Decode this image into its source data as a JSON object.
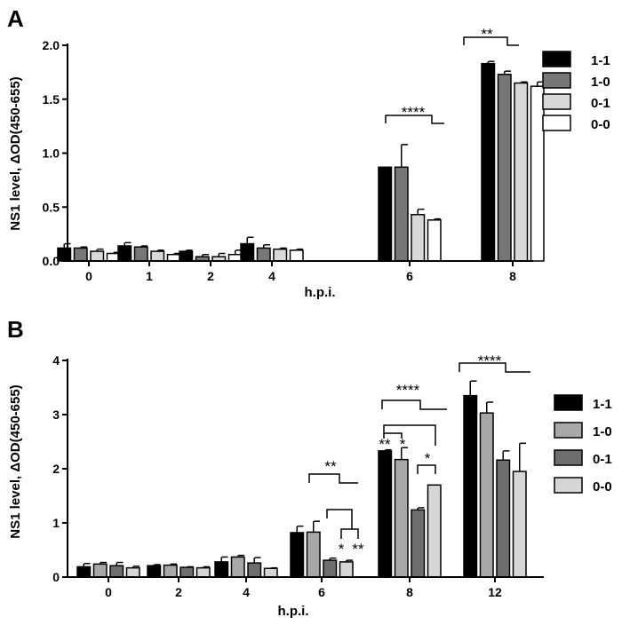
{
  "chart_data": [
    {
      "type": "bar",
      "panel_label": "A",
      "title": "",
      "xlabel": "h.p.i.",
      "ylabel": "NS1 level, ΔOD(450-655)",
      "ylim": [
        0,
        2.0
      ],
      "yticks": [
        0,
        0.5,
        1.0,
        1.5,
        2.0
      ],
      "ytick_labels": [
        "0.0",
        "0.5",
        "1.0",
        "1.5",
        "2.0"
      ],
      "categories": [
        "0",
        "1",
        "2",
        "4",
        "6",
        "8"
      ],
      "legend_position": "right",
      "series": [
        {
          "name": "1-1",
          "color": "#000000",
          "values": [
            0.12,
            0.14,
            0.09,
            0.16,
            0.87,
            1.83
          ],
          "errors": [
            0.04,
            0.03,
            0.01,
            0.06,
            0.0,
            0.02
          ]
        },
        {
          "name": "1-0",
          "color": "#777777",
          "values": [
            0.12,
            0.13,
            0.04,
            0.12,
            0.87,
            1.73
          ],
          "errors": [
            0.01,
            0.01,
            0.02,
            0.03,
            0.21,
            0.03
          ]
        },
        {
          "name": "0-1",
          "color": "#d8d8d8",
          "values": [
            0.09,
            0.09,
            0.04,
            0.11,
            0.43,
            1.65
          ],
          "errors": [
            0.02,
            0.01,
            0.03,
            0.01,
            0.05,
            0.01
          ]
        },
        {
          "name": "0-0",
          "color": "#ffffff",
          "values": [
            0.07,
            0.06,
            0.06,
            0.1,
            0.38,
            1.62
          ],
          "errors": [
            0.01,
            0.01,
            0.04,
            0.01,
            0.01,
            0.04
          ]
        }
      ],
      "annotations": [
        {
          "text": "****",
          "category": "6"
        },
        {
          "text": "**",
          "category": "8"
        }
      ]
    },
    {
      "type": "bar",
      "panel_label": "B",
      "title": "",
      "xlabel": "h.p.i.",
      "ylabel": "NS1 level, ΔOD(450-655)",
      "ylim": [
        0,
        4
      ],
      "yticks": [
        0,
        1,
        2,
        3,
        4
      ],
      "ytick_labels": [
        "0",
        "1",
        "2",
        "3",
        "4"
      ],
      "categories": [
        "0",
        "2",
        "4",
        "6",
        "8",
        "12"
      ],
      "legend_position": "right",
      "series": [
        {
          "name": "1-1",
          "color": "#000000",
          "values": [
            0.19,
            0.21,
            0.28,
            0.82,
            2.33,
            3.35
          ],
          "errors": [
            0.06,
            0.02,
            0.09,
            0.12,
            0.02,
            0.27
          ]
        },
        {
          "name": "1-0",
          "color": "#a8a8a8",
          "values": [
            0.24,
            0.22,
            0.37,
            0.83,
            2.17,
            3.03
          ],
          "errors": [
            0.03,
            0.02,
            0.03,
            0.2,
            0.22,
            0.2
          ]
        },
        {
          "name": "0-1",
          "color": "#6e6e6e",
          "values": [
            0.21,
            0.18,
            0.26,
            0.31,
            1.24,
            2.16
          ],
          "errors": [
            0.06,
            0.01,
            0.1,
            0.04,
            0.04,
            0.17
          ]
        },
        {
          "name": "0-0",
          "color": "#d6d6d6",
          "values": [
            0.17,
            0.17,
            0.16,
            0.28,
            1.7,
            1.95
          ],
          "errors": [
            0.03,
            0.02,
            0.01,
            0.03,
            0.0,
            0.52
          ]
        }
      ],
      "annotations": [
        {
          "text": "**",
          "category": "6"
        },
        {
          "text": "*",
          "category": "6"
        },
        {
          "text": "**",
          "category": "6"
        },
        {
          "text": "****",
          "category": "8"
        },
        {
          "text": "**",
          "category": "8"
        },
        {
          "text": "*",
          "category": "8"
        },
        {
          "text": "*",
          "category": "8"
        },
        {
          "text": "****",
          "category": "12"
        }
      ]
    }
  ]
}
